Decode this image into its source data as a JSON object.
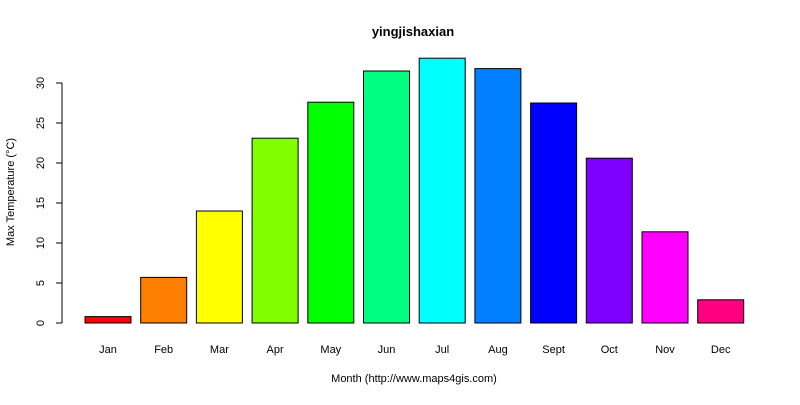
{
  "chart_data": {
    "type": "bar",
    "title": "yingjishaxian",
    "xlabel": "Month (http://www.maps4gis.com)",
    "ylabel": "Max Temperature (°C)",
    "categories": [
      "Jan",
      "Feb",
      "Mar",
      "Apr",
      "May",
      "Jun",
      "Jul",
      "Aug",
      "Sept",
      "Oct",
      "Nov",
      "Dec"
    ],
    "values": [
      0.8,
      5.7,
      14.0,
      23.1,
      27.6,
      31.5,
      33.1,
      31.8,
      27.5,
      20.6,
      11.4,
      2.9
    ],
    "colors": [
      "#FF0000",
      "#FF8000",
      "#FFFF00",
      "#80FF00",
      "#00FF00",
      "#00FF80",
      "#00FFFF",
      "#0080FF",
      "#0000FF",
      "#8000FF",
      "#FF00FF",
      "#FF0080"
    ],
    "yticks": [
      0,
      5,
      10,
      15,
      20,
      25,
      30
    ],
    "ylim": [
      0,
      33.1
    ],
    "grid": false,
    "legend": "none"
  }
}
